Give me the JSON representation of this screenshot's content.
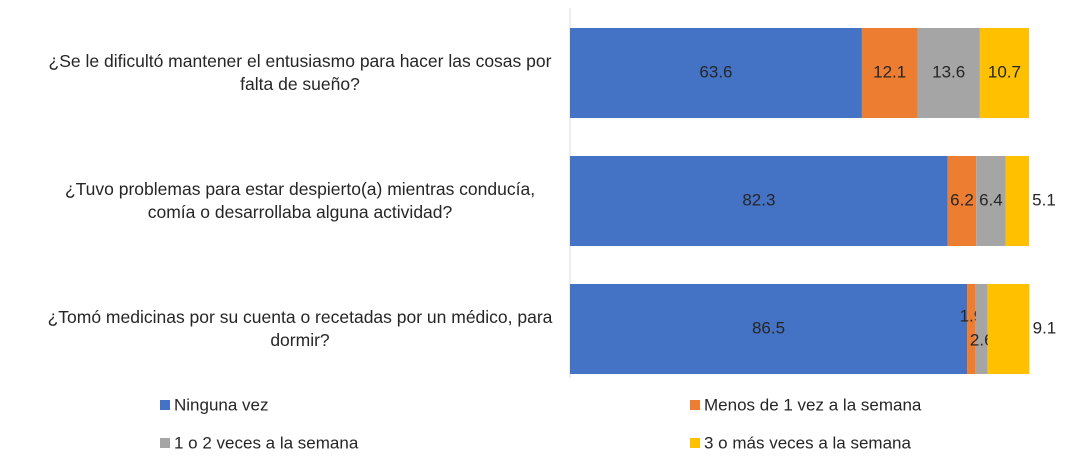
{
  "chart_data": {
    "type": "stacked_barh",
    "categories": [
      "¿Se le dificultó mantener el entusiasmo para hacer las cosas por falta de sueño?",
      "¿Tuvo problemas para estar despierto(a) mientras conducía, comía o desarrollaba alguna actividad?",
      "¿Tomó medicinas por su cuenta o recetadas por un médico, para dormir?"
    ],
    "series": [
      {
        "name": "Ninguna vez",
        "color": "#4472c4",
        "values": [
          63.6,
          82.3,
          86.5
        ]
      },
      {
        "name": "Menos de 1 vez a la semana",
        "color": "#ed7d31",
        "values": [
          12.1,
          6.2,
          1.9
        ]
      },
      {
        "name": "1 o 2 veces a la semana",
        "color": "#a5a5a5",
        "values": [
          13.6,
          6.4,
          2.6
        ]
      },
      {
        "name": "3 o más veces a la semana",
        "color": "#ffc000",
        "values": [
          10.7,
          5.1,
          9.1
        ]
      }
    ],
    "xlim": [
      0,
      100
    ],
    "legend": "bottom"
  }
}
